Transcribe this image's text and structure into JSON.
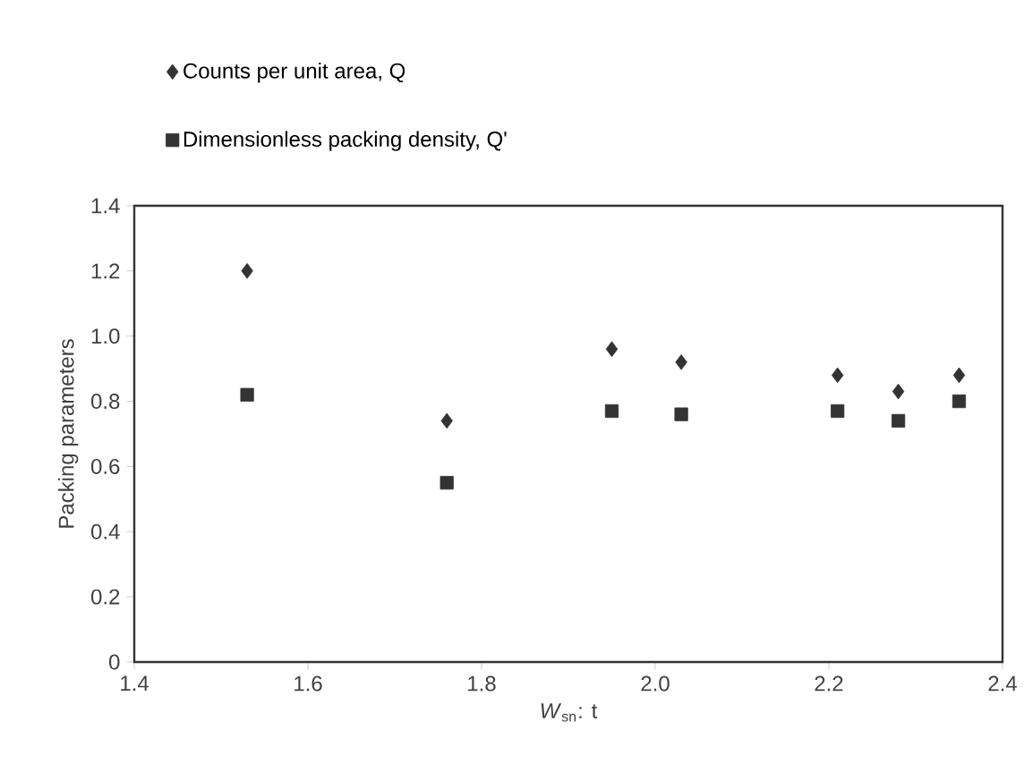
{
  "chart_data": {
    "type": "scatter",
    "xlabel": "*W*$_{sn}$: t",
    "ylabel": "Packing parameters",
    "xlim": [
      1.4,
      2.4
    ],
    "ylim": [
      0,
      1.4
    ],
    "xticks": [
      1.4,
      1.6,
      1.8,
      {
        "value": 2,
        "label": "2.0"
      },
      2.2,
      2.4
    ],
    "yticks": [
      0,
      0.2,
      0.4,
      0.6,
      0.8,
      {
        "value": 1,
        "label": "1.0"
      },
      1.2,
      1.4
    ],
    "x": [
      1.53,
      1.76,
      1.95,
      2.03,
      2.21,
      2.28,
      2.35
    ],
    "legend": "top",
    "series": [
      {
        "name": "Counts per unit area, Q",
        "color": "#333333",
        "marker": "diamond",
        "values": [
          1.2,
          0.74,
          0.96,
          0.92,
          0.88,
          0.83,
          0.88
        ]
      },
      {
        "name": "Dimensionless packing density, Q'",
        "color": "#333333",
        "marker": "square",
        "values": [
          0.82,
          0.55,
          0.77,
          0.76,
          0.77,
          0.74,
          0.8
        ]
      }
    ]
  }
}
